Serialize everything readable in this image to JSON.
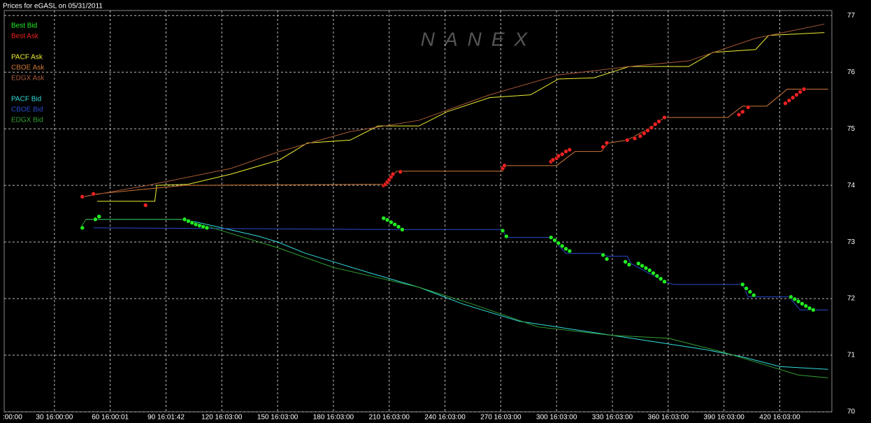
{
  "chart_data": {
    "type": "line",
    "title": "Prices for  eGASL  on  05/31/2011",
    "watermark": "NANEX",
    "xlim": [
      3,
      448
    ],
    "ylim": [
      70,
      77.09
    ],
    "yticks": [
      70,
      71,
      72,
      73,
      74,
      75,
      76,
      77
    ],
    "xticks": [
      {
        "value": 0,
        "label": ":00:00"
      },
      {
        "value": 30,
        "label": "30 16:00:00"
      },
      {
        "value": 60,
        "label": "60 16:00:01"
      },
      {
        "value": 90,
        "label": "90 16:01:42"
      },
      {
        "value": 120,
        "label": "120 16:03:00"
      },
      {
        "value": 150,
        "label": "150 16:03:00"
      },
      {
        "value": 180,
        "label": "180 16:03:00"
      },
      {
        "value": 210,
        "label": "210 16:03:00"
      },
      {
        "value": 240,
        "label": "240 16:03:00"
      },
      {
        "value": 270,
        "label": "270 16:03:00"
      },
      {
        "value": 300,
        "label": "300 16:03:00"
      },
      {
        "value": 330,
        "label": "330 16:03:00"
      },
      {
        "value": 360,
        "label": "360 16:03:00"
      },
      {
        "value": 390,
        "label": "390 16:03:00"
      },
      {
        "value": 420,
        "label": "420 16:03:00"
      }
    ],
    "grid": true,
    "series": [
      {
        "name": "Best Bid",
        "color": "#22ee22",
        "markers": true,
        "x": [
          45,
          52,
          54,
          100,
          102,
          104,
          106,
          108,
          110,
          112,
          207,
          209,
          211,
          213,
          215,
          217,
          271,
          273,
          297,
          299,
          301,
          303,
          305,
          307,
          325,
          327,
          337,
          339,
          344,
          346,
          348,
          350,
          352,
          354,
          356,
          358,
          400,
          402,
          404,
          406,
          426,
          428,
          430,
          432,
          434,
          436,
          438
        ],
        "values": [
          73.25,
          73.4,
          73.45,
          73.4,
          73.37,
          73.34,
          73.31,
          73.29,
          73.27,
          73.25,
          73.42,
          73.39,
          73.35,
          73.31,
          73.27,
          73.22,
          73.2,
          73.1,
          73.08,
          73.03,
          72.98,
          72.93,
          72.88,
          72.84,
          72.77,
          72.7,
          72.65,
          72.6,
          72.62,
          72.58,
          72.54,
          72.5,
          72.45,
          72.4,
          72.35,
          72.3,
          72.25,
          72.18,
          72.12,
          72.06,
          72.03,
          71.99,
          71.95,
          71.91,
          71.87,
          71.83,
          71.8
        ]
      },
      {
        "name": "Best Ask",
        "color": "#ee2222",
        "markers": true,
        "x": [
          45,
          51,
          79,
          207,
          208,
          209,
          210,
          211,
          212,
          216,
          271,
          272,
          297,
          298,
          300,
          301,
          303,
          305,
          307,
          325,
          327,
          338,
          342,
          345,
          347,
          349,
          351,
          353,
          355,
          358,
          398,
          400,
          403,
          423,
          425,
          427,
          429,
          431,
          433
        ],
        "values": [
          73.8,
          73.85,
          73.65,
          74.0,
          74.02,
          74.06,
          74.1,
          74.15,
          74.2,
          74.24,
          74.3,
          74.35,
          74.42,
          74.45,
          74.48,
          74.52,
          74.55,
          74.6,
          74.63,
          74.68,
          74.75,
          74.8,
          74.83,
          74.87,
          74.92,
          74.97,
          75.02,
          75.08,
          75.13,
          75.2,
          75.25,
          75.3,
          75.38,
          75.45,
          75.5,
          75.55,
          75.6,
          75.65,
          75.7
        ]
      },
      {
        "name": "PACF Ask",
        "color": "#eeee33",
        "x": [
          53,
          84,
          85,
          102,
          125,
          151,
          166,
          189,
          204,
          226,
          241,
          264,
          286,
          301,
          320,
          339,
          371,
          384,
          407,
          414,
          444
        ],
        "values": [
          73.72,
          73.72,
          74.0,
          74.02,
          74.2,
          74.45,
          74.75,
          74.8,
          75.05,
          75.05,
          75.3,
          75.55,
          75.6,
          75.88,
          75.9,
          76.1,
          76.1,
          76.35,
          76.4,
          76.65,
          76.7
        ]
      },
      {
        "name": "CBOE Ask",
        "color": "#d07838",
        "x": [
          46,
          53,
          84,
          100,
          207,
          214,
          271,
          273,
          300,
          310,
          324,
          328,
          338,
          352,
          358,
          392,
          400,
          413,
          424,
          446
        ],
        "values": [
          73.8,
          73.85,
          73.95,
          74.0,
          74.02,
          74.25,
          74.25,
          74.35,
          74.35,
          74.6,
          74.6,
          74.75,
          74.8,
          75.05,
          75.2,
          75.2,
          75.4,
          75.4,
          75.7,
          75.7
        ]
      },
      {
        "name": "EDGX Ask",
        "color": "#a85838",
        "x": [
          46,
          80,
          125,
          151,
          189,
          226,
          264,
          301,
          339,
          371,
          407,
          444
        ],
        "values": [
          73.8,
          74.0,
          74.3,
          74.6,
          74.95,
          75.15,
          75.6,
          75.95,
          76.1,
          76.2,
          76.6,
          76.85
        ]
      },
      {
        "name": "PACF Bid",
        "color": "#33dddd",
        "x": [
          47,
          100,
          120,
          140,
          150,
          165,
          180,
          200,
          226,
          250,
          280,
          320,
          350,
          380,
          400,
          420,
          446
        ],
        "values": [
          73.4,
          73.4,
          73.25,
          73.1,
          73.0,
          72.8,
          72.65,
          72.45,
          72.2,
          71.9,
          71.6,
          71.4,
          71.25,
          71.1,
          70.97,
          70.8,
          70.75
        ]
      },
      {
        "name": "CBOE Bid",
        "color": "#2a4ccc",
        "x": [
          51,
          216,
          271,
          273,
          297,
          305,
          325,
          327,
          338,
          340,
          358,
          363,
          400,
          403,
          425,
          431,
          446
        ],
        "values": [
          73.25,
          73.22,
          73.22,
          73.08,
          73.08,
          72.8,
          72.8,
          72.75,
          72.75,
          72.62,
          72.3,
          72.25,
          72.25,
          72.03,
          72.03,
          71.8,
          71.8
        ]
      },
      {
        "name": "EDGX Bid",
        "color": "#33a033",
        "x": [
          44,
          47,
          100,
          120,
          150,
          180,
          200,
          226,
          255,
          290,
          330,
          360,
          390,
          410,
          430,
          446
        ],
        "values": [
          73.25,
          73.4,
          73.4,
          73.2,
          72.9,
          72.55,
          72.4,
          72.2,
          71.9,
          71.5,
          71.35,
          71.3,
          71.05,
          70.85,
          70.65,
          70.6
        ]
      }
    ]
  }
}
